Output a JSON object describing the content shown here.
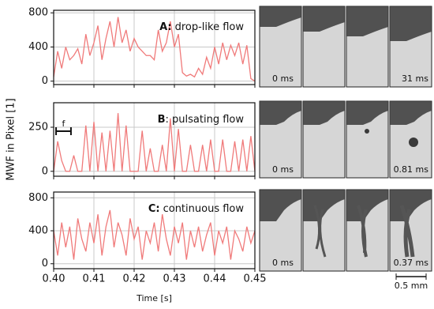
{
  "chart_data": [
    {
      "type": "line",
      "panel_label": "A:",
      "title": "drop-like flow",
      "color": "#f07a7a",
      "x": [
        0.4,
        0.401,
        0.402,
        0.403,
        0.404,
        0.405,
        0.406,
        0.407,
        0.408,
        0.409,
        0.41,
        0.411,
        0.412,
        0.413,
        0.414,
        0.415,
        0.416,
        0.417,
        0.418,
        0.419,
        0.42,
        0.421,
        0.422,
        0.423,
        0.424,
        0.425,
        0.426,
        0.427,
        0.428,
        0.429,
        0.43,
        0.431,
        0.432,
        0.433,
        0.434,
        0.435,
        0.436,
        0.437,
        0.438,
        0.439,
        0.44,
        0.441,
        0.442,
        0.443,
        0.444,
        0.445,
        0.446,
        0.447,
        0.448,
        0.449,
        0.45
      ],
      "values": [
        50,
        350,
        150,
        400,
        250,
        300,
        380,
        200,
        550,
        300,
        450,
        650,
        250,
        500,
        700,
        400,
        750,
        450,
        600,
        350,
        500,
        400,
        350,
        300,
        300,
        250,
        600,
        350,
        450,
        700,
        400,
        550,
        100,
        60,
        80,
        50,
        150,
        80,
        280,
        150,
        400,
        200,
        450,
        250,
        420,
        300,
        450,
        200,
        420,
        30,
        0
      ],
      "xlim": [
        0.4,
        0.45
      ],
      "ylim": [
        -40,
        830
      ],
      "yticks": [
        0,
        400,
        800
      ],
      "grid": true
    },
    {
      "type": "line",
      "panel_label": "B",
      "title": ": pulsating flow",
      "color": "#f07a7a",
      "ylabel": "MWF in Pixel [1]",
      "annotation": "f",
      "x": [
        0.4,
        0.401,
        0.402,
        0.403,
        0.404,
        0.405,
        0.406,
        0.407,
        0.408,
        0.409,
        0.41,
        0.411,
        0.412,
        0.413,
        0.414,
        0.415,
        0.416,
        0.417,
        0.418,
        0.419,
        0.42,
        0.421,
        0.422,
        0.423,
        0.424,
        0.425,
        0.426,
        0.427,
        0.428,
        0.429,
        0.43,
        0.431,
        0.432,
        0.433,
        0.434,
        0.435,
        0.436,
        0.437,
        0.438,
        0.439,
        0.44,
        0.441,
        0.442,
        0.443,
        0.444,
        0.445,
        0.446,
        0.447,
        0.448,
        0.449,
        0.45
      ],
      "values": [
        0,
        170,
        60,
        0,
        0,
        90,
        0,
        0,
        260,
        0,
        280,
        0,
        220,
        0,
        230,
        0,
        330,
        0,
        260,
        0,
        0,
        0,
        230,
        0,
        130,
        0,
        0,
        150,
        0,
        300,
        0,
        240,
        0,
        0,
        150,
        0,
        0,
        150,
        0,
        180,
        0,
        0,
        180,
        0,
        0,
        170,
        0,
        180,
        0,
        200,
        0
      ],
      "xlim": [
        0.4,
        0.45
      ],
      "ylim": [
        -28,
        389
      ],
      "yticks": [
        0,
        250
      ],
      "grid": true
    },
    {
      "type": "line",
      "panel_label": "C:",
      "title": "continuous flow",
      "color": "#f07a7a",
      "xlabel": "Time [s]",
      "x": [
        0.4,
        0.401,
        0.402,
        0.403,
        0.404,
        0.405,
        0.406,
        0.407,
        0.408,
        0.409,
        0.41,
        0.411,
        0.412,
        0.413,
        0.414,
        0.415,
        0.416,
        0.417,
        0.418,
        0.419,
        0.42,
        0.421,
        0.422,
        0.423,
        0.424,
        0.425,
        0.426,
        0.427,
        0.428,
        0.429,
        0.43,
        0.431,
        0.432,
        0.433,
        0.434,
        0.435,
        0.436,
        0.437,
        0.438,
        0.439,
        0.44,
        0.441,
        0.442,
        0.443,
        0.444,
        0.445,
        0.446,
        0.447,
        0.448,
        0.449,
        0.45
      ],
      "values": [
        400,
        100,
        500,
        200,
        450,
        50,
        550,
        300,
        150,
        500,
        250,
        600,
        100,
        450,
        650,
        200,
        500,
        350,
        100,
        550,
        300,
        450,
        50,
        400,
        250,
        500,
        150,
        600,
        300,
        100,
        450,
        250,
        500,
        50,
        400,
        200,
        450,
        150,
        350,
        500,
        100,
        400,
        250,
        450,
        50,
        400,
        300,
        150,
        450,
        250,
        400
      ],
      "xlim": [
        0.4,
        0.45
      ],
      "ylim": [
        -60,
        870
      ],
      "yticks": [
        0,
        400,
        800
      ],
      "xticks": [
        {
          "value": 0.4,
          "label": "0.40"
        },
        0.41,
        0.42,
        0.43,
        0.44,
        0.45
      ],
      "grid": true
    }
  ],
  "images": [
    {
      "labels": [
        "0 ms",
        "31 ms"
      ]
    },
    {
      "labels": [
        "0 ms",
        "0.81 ms"
      ]
    },
    {
      "labels": [
        "0 ms",
        "0.37 ms"
      ]
    }
  ],
  "scale_bar": "0.5 mm"
}
